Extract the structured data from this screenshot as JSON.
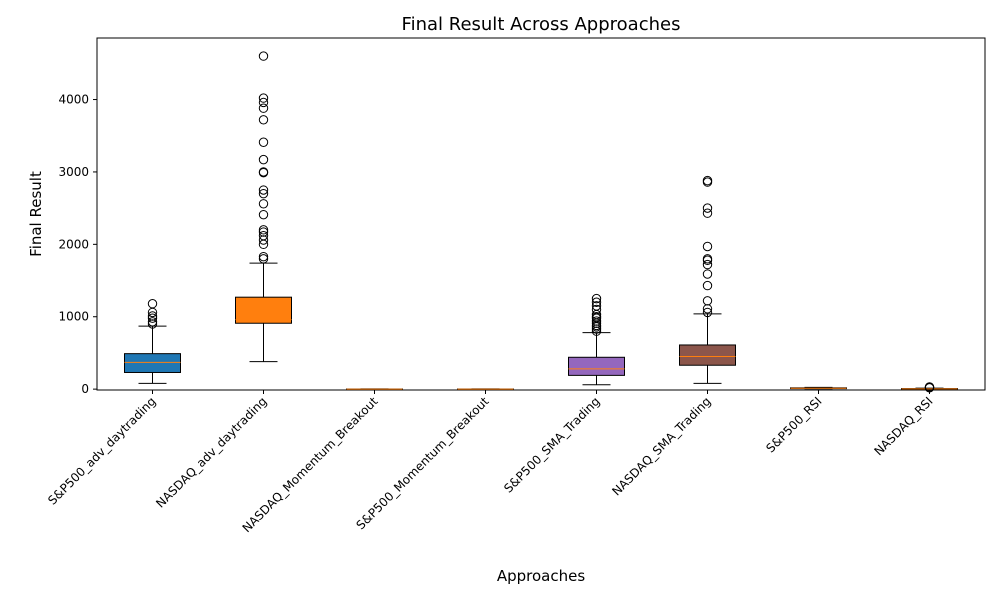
{
  "chart_data": {
    "type": "boxplot",
    "title": "Final Result Across Approaches",
    "xlabel": "Approaches",
    "ylabel": "Final Result",
    "ylim": [
      -12,
      4850
    ],
    "yticks": [
      0,
      1000,
      2000,
      3000,
      4000
    ],
    "grid": false,
    "median_color": "#ff7f0e",
    "categories": [
      "S&P500_adv_daytrading",
      "NASDAQ_adv_daytrading",
      "NASDAQ_Momentum_Breakout",
      "S&P500_Momentum_Breakout",
      "S&P500_SMA_Trading",
      "NASDAQ_SMA_Trading",
      "S&P500_RSI",
      "NASDAQ_RSI"
    ],
    "boxes": [
      {
        "color": "#1f77b4",
        "whislo": 80,
        "q1": 230,
        "med": 370,
        "q3": 490,
        "whishi": 870,
        "fliers": [
          900,
          930,
          980,
          1010,
          1060,
          1180
        ]
      },
      {
        "color": "#ff7f0e",
        "whislo": 380,
        "q1": 910,
        "med": 960,
        "q3": 1270,
        "whishi": 1740,
        "fliers": [
          1800,
          1830,
          2000,
          2060,
          2120,
          2170,
          2200,
          2410,
          2560,
          2700,
          2750,
          2990,
          3000,
          3170,
          3410,
          3720,
          3880,
          3960,
          4020,
          4600
        ]
      },
      {
        "color": "#2ca02c",
        "whislo": 0,
        "q1": 0,
        "med": 0,
        "q3": 2,
        "whishi": 4,
        "fliers": []
      },
      {
        "color": "#d62728",
        "whislo": 0,
        "q1": 0,
        "med": 0,
        "q3": 2,
        "whishi": 4,
        "fliers": []
      },
      {
        "color": "#9467bd",
        "whislo": 60,
        "q1": 190,
        "med": 280,
        "q3": 440,
        "whishi": 780,
        "fliers": [
          800,
          830,
          860,
          880,
          910,
          940,
          980,
          1000,
          1030,
          1100,
          1150,
          1200,
          1250
        ]
      },
      {
        "color": "#8c564b",
        "whislo": 80,
        "q1": 330,
        "med": 450,
        "q3": 610,
        "whishi": 1040,
        "fliers": [
          1060,
          1110,
          1220,
          1430,
          1590,
          1720,
          1780,
          1800,
          1970,
          2430,
          2500,
          2860,
          2880
        ]
      },
      {
        "color": "#e377c2",
        "whislo": 5,
        "q1": 10,
        "med": 13,
        "q3": 18,
        "whishi": 25,
        "fliers": []
      },
      {
        "color": "#7f7f7f",
        "whislo": 0,
        "q1": 2,
        "med": 4,
        "q3": 8,
        "whishi": 14,
        "fliers": [
          18,
          22,
          26,
          30
        ]
      }
    ]
  }
}
